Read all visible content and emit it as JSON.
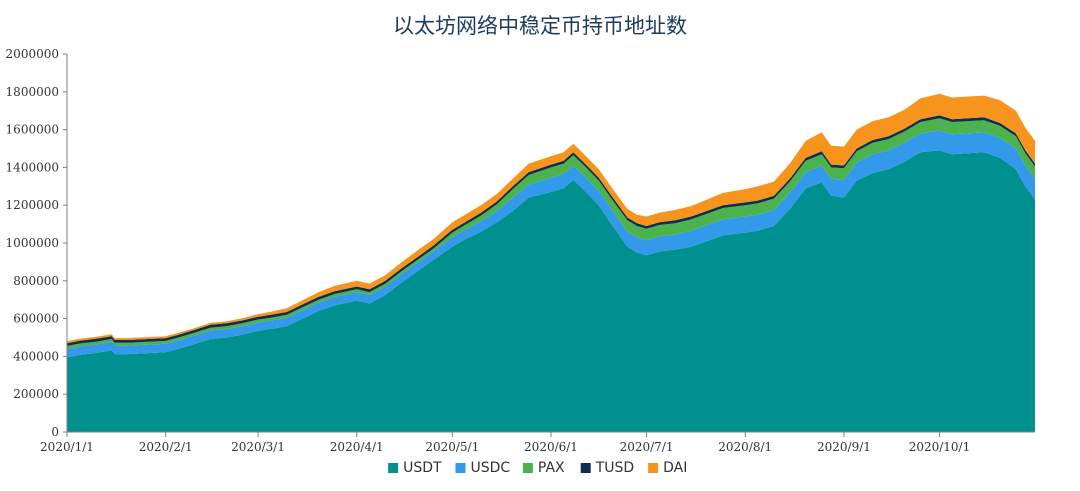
{
  "chart_data": {
    "type": "area",
    "stacked": true,
    "title": "以太坊网络中稳定币持币地址数",
    "xlabel": "",
    "ylabel": "",
    "ylim": [
      0,
      2000000
    ],
    "yticks": [
      0,
      200000,
      400000,
      600000,
      800000,
      1000000,
      1200000,
      1400000,
      1600000,
      1800000,
      2000000
    ],
    "ytick_labels": [
      "0",
      "200000",
      "400000",
      "600000",
      "800000",
      "1000000",
      "1200000",
      "1400000",
      "1600000",
      "1800000",
      "2000000"
    ],
    "xlim": [
      "2020-01-01",
      "2020-10-31"
    ],
    "xtick_labels": [
      "2020/1/1",
      "2020/2/1",
      "2020/3/1",
      "2020/4/1",
      "2020/5/1",
      "2020/6/1",
      "2020/7/1",
      "2020/8/1",
      "2020/9/1",
      "2020/10/1"
    ],
    "grid": false,
    "legend_position": "bottom",
    "x": [
      "2020-01-01",
      "2020-01-05",
      "2020-01-10",
      "2020-01-15",
      "2020-01-16",
      "2020-01-20",
      "2020-01-25",
      "2020-02-01",
      "2020-02-05",
      "2020-02-10",
      "2020-02-15",
      "2020-02-20",
      "2020-02-25",
      "2020-03-01",
      "2020-03-05",
      "2020-03-10",
      "2020-03-15",
      "2020-03-20",
      "2020-03-25",
      "2020-04-01",
      "2020-04-05",
      "2020-04-10",
      "2020-04-15",
      "2020-04-20",
      "2020-04-25",
      "2020-05-01",
      "2020-05-05",
      "2020-05-10",
      "2020-05-15",
      "2020-05-20",
      "2020-05-25",
      "2020-06-01",
      "2020-06-05",
      "2020-06-08",
      "2020-06-12",
      "2020-06-16",
      "2020-06-20",
      "2020-06-25",
      "2020-06-28",
      "2020-07-01",
      "2020-07-05",
      "2020-07-10",
      "2020-07-15",
      "2020-07-20",
      "2020-07-25",
      "2020-08-01",
      "2020-08-05",
      "2020-08-10",
      "2020-08-15",
      "2020-08-20",
      "2020-08-25",
      "2020-08-28",
      "2020-09-01",
      "2020-09-05",
      "2020-09-10",
      "2020-09-15",
      "2020-09-20",
      "2020-09-25",
      "2020-10-01",
      "2020-10-05",
      "2020-10-10",
      "2020-10-15",
      "2020-10-20",
      "2020-10-25",
      "2020-10-28",
      "2020-10-31"
    ],
    "series": [
      {
        "name": "USDT",
        "color": "#00908f",
        "values": [
          395000,
          408000,
          418000,
          432000,
          412000,
          412000,
          416000,
          422000,
          440000,
          465000,
          492000,
          500000,
          515000,
          535000,
          545000,
          560000,
          600000,
          640000,
          670000,
          695000,
          680000,
          725000,
          790000,
          850000,
          910000,
          980000,
          1020000,
          1060000,
          1110000,
          1170000,
          1240000,
          1270000,
          1290000,
          1335000,
          1270000,
          1200000,
          1100000,
          980000,
          950000,
          935000,
          955000,
          965000,
          980000,
          1010000,
          1040000,
          1055000,
          1065000,
          1090000,
          1180000,
          1290000,
          1320000,
          1250000,
          1240000,
          1330000,
          1370000,
          1390000,
          1430000,
          1480000,
          1490000,
          1470000,
          1475000,
          1480000,
          1450000,
          1390000,
          1300000,
          1230000
        ]
      },
      {
        "name": "USDC",
        "color": "#3399ea",
        "values": [
          45000,
          45000,
          45000,
          45000,
          45000,
          45000,
          45000,
          45000,
          45000,
          45000,
          45000,
          45000,
          45000,
          45000,
          45000,
          45000,
          45000,
          45000,
          45000,
          45000,
          45000,
          45000,
          45000,
          45000,
          45000,
          50000,
          50000,
          55000,
          60000,
          70000,
          70000,
          75000,
          75000,
          75000,
          75000,
          75000,
          80000,
          80000,
          80000,
          80000,
          80000,
          80000,
          85000,
          85000,
          85000,
          85000,
          85000,
          85000,
          85000,
          85000,
          90000,
          90000,
          95000,
          95000,
          100000,
          100000,
          100000,
          100000,
          105000,
          105000,
          105000,
          105000,
          105000,
          110000,
          110000,
          110000
        ]
      },
      {
        "name": "PAX",
        "color": "#4cb24c",
        "values": [
          15000,
          15000,
          15000,
          15000,
          15000,
          15000,
          15000,
          15000,
          15000,
          15000,
          15000,
          15000,
          15000,
          15000,
          15000,
          15000,
          15000,
          15000,
          15000,
          15000,
          15000,
          15000,
          15000,
          15000,
          15000,
          25000,
          25000,
          30000,
          35000,
          45000,
          50000,
          55000,
          55000,
          55000,
          55000,
          55000,
          55000,
          60000,
          60000,
          60000,
          60000,
          60000,
          60000,
          60000,
          60000,
          60000,
          60000,
          60000,
          60000,
          60000,
          60000,
          60000,
          60000,
          60000,
          60000,
          60000,
          60000,
          60000,
          65000,
          65000,
          65000,
          65000,
          65000,
          65000,
          65000,
          65000
        ]
      },
      {
        "name": "TUSD",
        "color": "#0d2d52",
        "values": [
          15000,
          15000,
          15000,
          15000,
          15000,
          15000,
          15000,
          15000,
          15000,
          15000,
          15000,
          15000,
          15000,
          15000,
          15000,
          15000,
          15000,
          15000,
          15000,
          15000,
          15000,
          15000,
          15000,
          15000,
          15000,
          15000,
          15000,
          15000,
          15000,
          15000,
          15000,
          15000,
          15000,
          15000,
          15000,
          15000,
          15000,
          15000,
          15000,
          15000,
          15000,
          15000,
          15000,
          15000,
          15000,
          15000,
          15000,
          15000,
          15000,
          15000,
          15000,
          15000,
          15000,
          15000,
          15000,
          15000,
          15000,
          15000,
          15000,
          15000,
          15000,
          15000,
          15000,
          15000,
          15000,
          15000
        ]
      },
      {
        "name": "DAI",
        "color": "#f7941d",
        "values": [
          10000,
          10000,
          10000,
          10000,
          10000,
          10000,
          10000,
          10000,
          10000,
          10000,
          10000,
          10000,
          12000,
          14000,
          16000,
          20000,
          22000,
          25000,
          28000,
          30000,
          30000,
          30000,
          32000,
          35000,
          35000,
          40000,
          40000,
          40000,
          40000,
          40000,
          45000,
          45000,
          45000,
          45000,
          45000,
          45000,
          45000,
          45000,
          45000,
          50000,
          50000,
          55000,
          55000,
          60000,
          65000,
          70000,
          75000,
          75000,
          80000,
          90000,
          100000,
          100000,
          100000,
          100000,
          100000,
          100000,
          100000,
          110000,
          115000,
          115000,
          115000,
          115000,
          120000,
          120000,
          120000,
          120000
        ]
      }
    ]
  }
}
